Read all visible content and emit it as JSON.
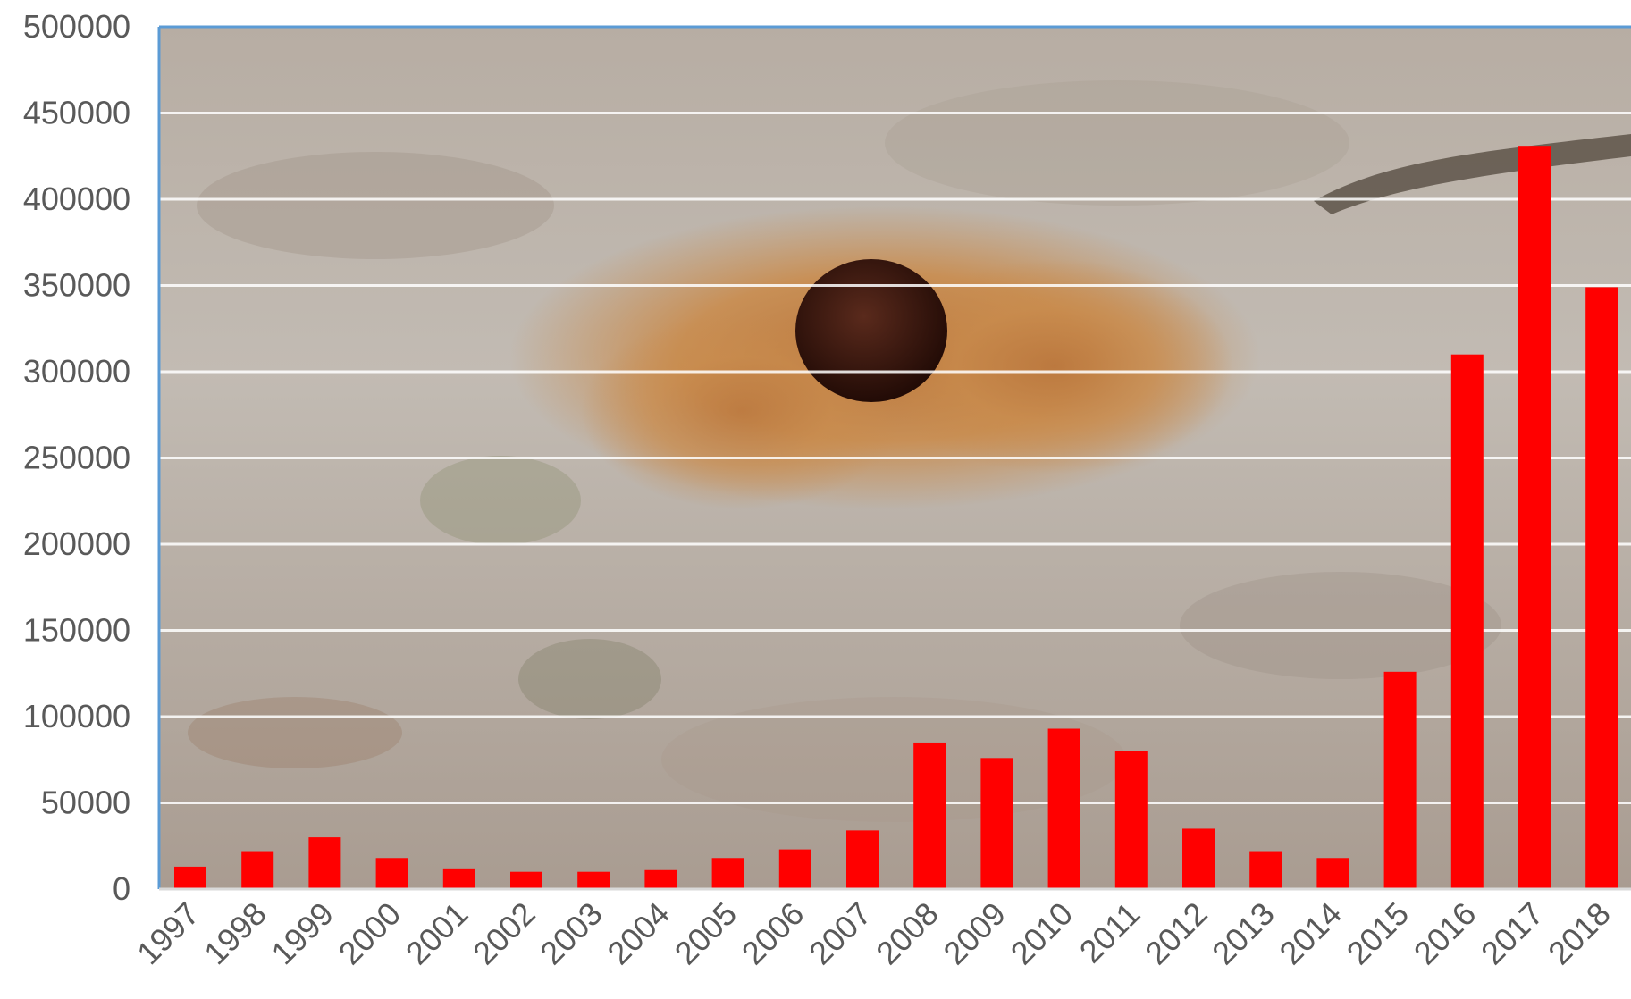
{
  "chart_data": {
    "type": "bar",
    "title": "",
    "xlabel": "",
    "ylabel": "",
    "categories": [
      "1997",
      "1998",
      "1999",
      "2000",
      "2001",
      "2002",
      "2003",
      "2004",
      "2005",
      "2006",
      "2007",
      "2008",
      "2009",
      "2010",
      "2011",
      "2012",
      "2013",
      "2014",
      "2015",
      "2016",
      "2017",
      "2018"
    ],
    "values": [
      13000,
      22000,
      30000,
      18000,
      12000,
      10000,
      10000,
      11000,
      18000,
      23000,
      34000,
      85000,
      76000,
      93000,
      80000,
      35000,
      22000,
      18000,
      126000,
      310000,
      431000,
      349000
    ],
    "ylim": [
      0,
      500000
    ],
    "yticks": [
      "0",
      "50000",
      "100000",
      "150000",
      "200000",
      "250000",
      "300000",
      "350000",
      "400000",
      "450000",
      "500000"
    ],
    "grid": true,
    "legend": "none",
    "bar_color": "#ff0000",
    "gridline_color": "#ffffff",
    "axis_color": "#5b9bd5",
    "background": "photograph of tree bark with a hole surrounded by sawdust (frass)"
  }
}
